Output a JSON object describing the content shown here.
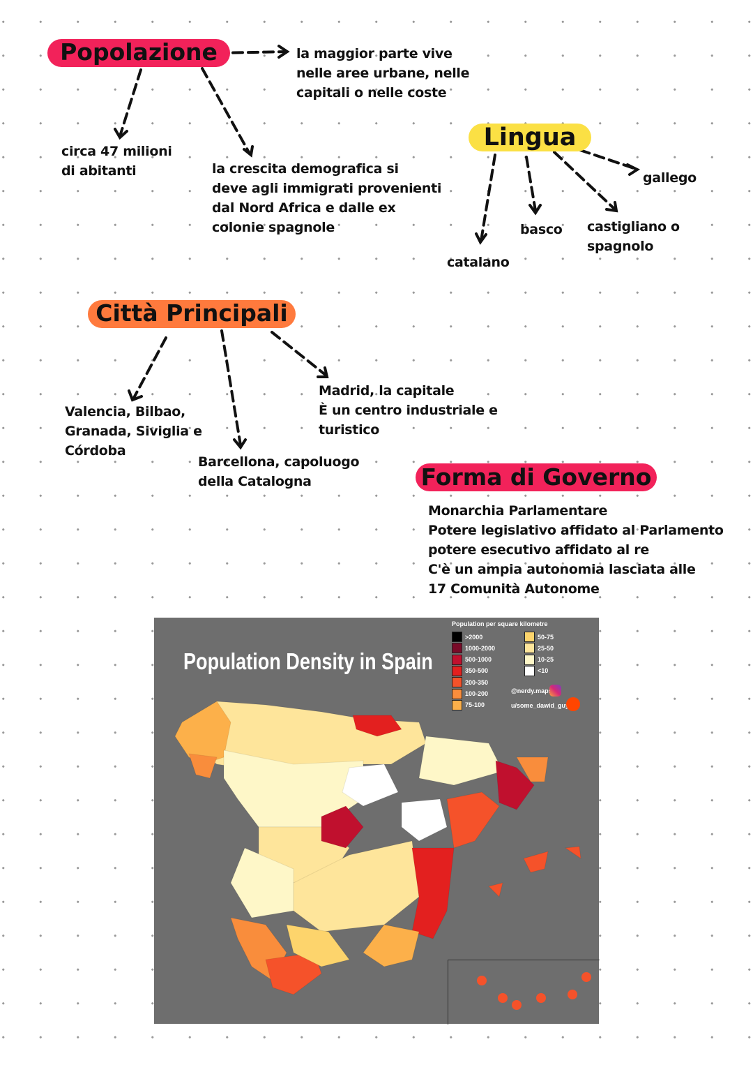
{
  "popolazione": {
    "title": "Popolazione",
    "color": "#f2225a",
    "note_urban": "la maggior parte vive\nnelle aree urbane, nelle\ncapitali o nelle coste",
    "note_count": "circa 47 milioni\ndi abitanti",
    "note_growth": "la crescita demografica si\ndeve agli immigrati provenienti\ndal Nord Africa e dalle ex\ncolonie spagnole"
  },
  "lingua": {
    "title": "Lingua",
    "color": "#fbe044",
    "items": [
      "catalano",
      "basco",
      "castigliano o\nspagnolo",
      "gallego"
    ]
  },
  "citta": {
    "title": "Città Principali",
    "color": "#ff7a3d",
    "items": [
      "Valencia, Bilbao,\nGranada, Siviglia e\nCórdoba",
      "Barcellona, capoluogo\ndella Catalogna",
      "Madrid, la capitale\nÈ un centro industriale e\nturistico"
    ]
  },
  "governo": {
    "title": "Forma di Governo",
    "color": "#f2225a",
    "lines": [
      "Monarchia Parlamentare",
      "Potere legislativo affidato al Parlamento",
      "potere esecutivo affidato al re",
      "C'è un ampia autonomia lasciata alle",
      "17 Comunità Autonome"
    ]
  },
  "map": {
    "title": "Population Density in Spain",
    "legend_title": "Population per square kilometre",
    "legend": [
      {
        "label": ">2000",
        "color": "#000000"
      },
      {
        "label": "1000-2000",
        "color": "#7a0a28"
      },
      {
        "label": "500-1000",
        "color": "#c0102e"
      },
      {
        "label": "350-500",
        "color": "#e3201f"
      },
      {
        "label": "200-350",
        "color": "#f5522a"
      },
      {
        "label": "100-200",
        "color": "#f98d3c"
      },
      {
        "label": "75-100",
        "color": "#fcb04a"
      },
      {
        "label": "50-75",
        "color": "#fdd46c"
      },
      {
        "label": "25-50",
        "color": "#fee59b"
      },
      {
        "label": "10-25",
        "color": "#fef7c8"
      },
      {
        "label": "<10",
        "color": "#ffffff"
      }
    ],
    "instagram": "@nerdy.maps",
    "reddit": "u/some_dawid_guy",
    "background": "#6e6e6e"
  }
}
